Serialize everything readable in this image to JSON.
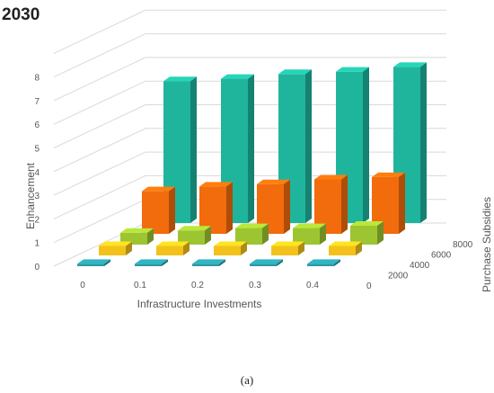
{
  "chart_data": {
    "type": "bar3d",
    "title": "2030",
    "caption": "(a)",
    "xlabel": "Infrastructure Investments",
    "ylabel": "Enhancement",
    "zlabel": "Purchase Subsidies",
    "x_categories": [
      "0",
      "0.1",
      "0.2",
      "0.3",
      "0.4"
    ],
    "z_categories": [
      "0",
      "2000",
      "4000",
      "6000",
      "8000"
    ],
    "y_ticks": [
      "0",
      "1",
      "2",
      "3",
      "4",
      "5",
      "6",
      "7",
      "8"
    ],
    "ylim": [
      0,
      9
    ],
    "series": [
      {
        "z": "0",
        "values": [
          0.1,
          0.1,
          0.1,
          0.1,
          0.1
        ],
        "color": "#2a9aa6"
      },
      {
        "z": "2000",
        "values": [
          0.4,
          0.4,
          0.4,
          0.4,
          0.4
        ],
        "color": "#f2c21b"
      },
      {
        "z": "4000",
        "values": [
          0.5,
          0.6,
          0.7,
          0.7,
          0.8
        ],
        "color": "#9dc532"
      },
      {
        "z": "6000",
        "values": [
          1.8,
          2.0,
          2.1,
          2.3,
          2.4
        ],
        "color": "#f26b0c"
      },
      {
        "z": "8000",
        "values": [
          6.0,
          6.1,
          6.3,
          6.4,
          6.6
        ],
        "color": "#1fb59d"
      }
    ],
    "grid": true
  }
}
